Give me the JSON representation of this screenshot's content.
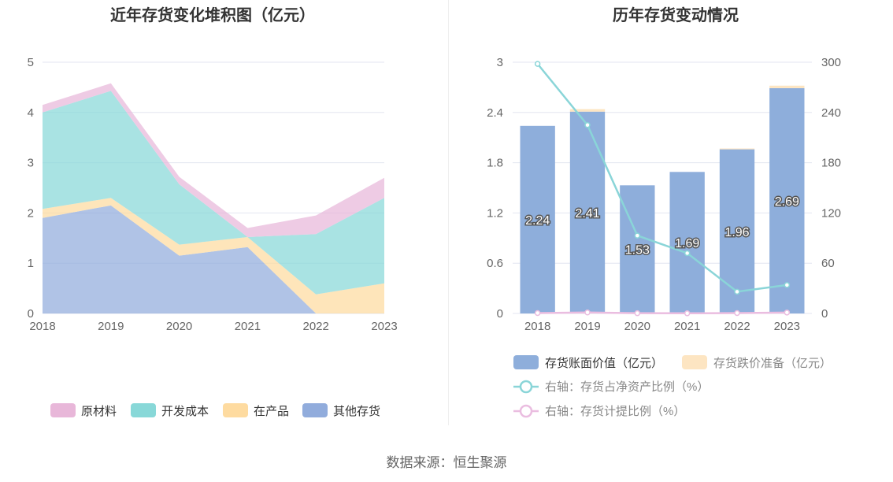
{
  "footer": {
    "source": "数据来源：恒生聚源"
  },
  "colors": {
    "raw_materials": "#E8B7D9",
    "development_cost": "#88D8D8",
    "wip": "#FEDBA0",
    "other_inventory": "#91ACDC",
    "bar_book_value": "#8EAEDB",
    "bar_impairment": "#FDE5C2",
    "line_ratio": "#8AD5D8",
    "line_provision": "#EABDE0",
    "grid": "#E3E6F0",
    "divider": "#EEEEEE"
  },
  "chart_data": [
    {
      "type": "area",
      "title": "近年存货变化堆积图（亿元）",
      "x": [
        "2018",
        "2019",
        "2020",
        "2021",
        "2022",
        "2023"
      ],
      "y_ticks": [
        "0",
        "1",
        "2",
        "3",
        "4",
        "5"
      ],
      "ylim": [
        0,
        5
      ],
      "stacked": true,
      "grid": true,
      "legend_position": "bottom",
      "series": [
        {
          "name": "其他存货",
          "color_key": "other_inventory",
          "values": [
            1.9,
            2.15,
            1.15,
            1.32,
            0.0,
            0.0
          ]
        },
        {
          "name": "在产品",
          "color_key": "wip",
          "values": [
            0.18,
            0.15,
            0.22,
            0.2,
            0.38,
            0.6
          ]
        },
        {
          "name": "开发成本",
          "color_key": "development_cost",
          "values": [
            1.92,
            2.13,
            1.2,
            0.0,
            1.2,
            1.7
          ]
        },
        {
          "name": "原材料",
          "color_key": "raw_materials",
          "values": [
            0.15,
            0.15,
            0.15,
            0.18,
            0.37,
            0.4
          ]
        }
      ],
      "legend_order": [
        "原材料",
        "开发成本",
        "在产品",
        "其他存货"
      ]
    },
    {
      "type": "bar",
      "title": "历年存货变动情况",
      "x": [
        "2018",
        "2019",
        "2020",
        "2021",
        "2022",
        "2023"
      ],
      "y_left_ticks": [
        "0",
        "0.6",
        "1.2",
        "1.8",
        "2.4",
        "3"
      ],
      "y_right_ticks": [
        "0",
        "60",
        "120",
        "180",
        "240",
        "300"
      ],
      "ylim_left": [
        0,
        3
      ],
      "ylim_right": [
        0,
        300
      ],
      "stacked": true,
      "grid": true,
      "legend_position": "bottom",
      "bar_series": [
        {
          "name": "存货账面价值（亿元）",
          "color_key": "bar_book_value",
          "values": [
            2.24,
            2.41,
            1.53,
            1.69,
            1.96,
            2.69
          ],
          "labels": [
            "2.24",
            "2.41",
            "1.53",
            "1.69",
            "1.96",
            "2.69"
          ]
        },
        {
          "name": "存货跌价准备（亿元）",
          "color_key": "bar_impairment",
          "values": [
            0.0,
            0.03,
            0.0,
            0.0,
            0.01,
            0.03
          ]
        }
      ],
      "line_series": [
        {
          "name": "右轴：存货占净资产比例（%）",
          "color_key": "line_ratio",
          "axis": "right",
          "values": [
            298,
            225,
            93,
            72,
            26,
            34
          ]
        },
        {
          "name": "右轴：存货计提比例（%）",
          "color_key": "line_provision",
          "axis": "right",
          "values": [
            0.5,
            1.2,
            0.3,
            0.2,
            0.5,
            1.1
          ]
        }
      ]
    }
  ]
}
